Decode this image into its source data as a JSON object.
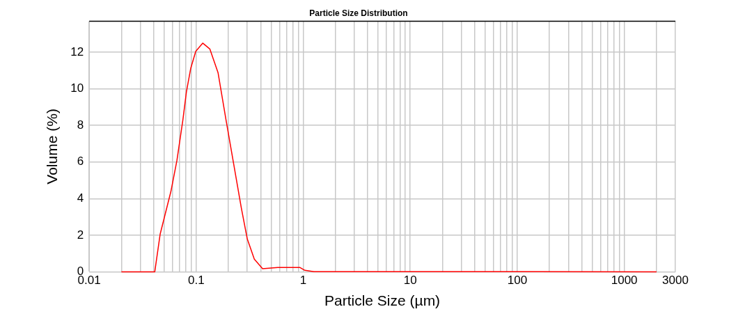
{
  "chart_data": {
    "type": "line",
    "title": "Particle Size Distribution",
    "xlabel": "Particle Size (µm)",
    "ylabel": "Volume (%)",
    "log": "x",
    "grid": true,
    "legend": false,
    "marker": "none",
    "line_style": "solid",
    "x": [
      0.02,
      0.041,
      0.046,
      0.058,
      0.066,
      0.075,
      0.081,
      0.089,
      0.099,
      0.115,
      0.134,
      0.16,
      0.19,
      0.227,
      0.264,
      0.3,
      0.349,
      0.417,
      0.578,
      0.934,
      1.035,
      1.26,
      2000
    ],
    "series": [
      {
        "color": "#ff0000",
        "values": [
          0,
          0,
          2.05,
          4.39,
          6.08,
          8.29,
          9.84,
          11.14,
          12.05,
          12.5,
          12.18,
          10.88,
          8.29,
          5.69,
          3.48,
          1.79,
          0.69,
          0.17,
          0.23,
          0.23,
          0.08,
          0.01,
          0
        ]
      }
    ],
    "xlim": [
      0.01,
      3000
    ],
    "xticks": [
      0.01,
      {
        "value": 0.02,
        "label": null
      },
      {
        "value": 0.03,
        "label": null
      },
      {
        "value": 0.04,
        "label": null
      },
      {
        "value": 0.05,
        "label": null
      },
      {
        "value": 0.06,
        "label": null
      },
      {
        "value": 0.07,
        "label": null
      },
      {
        "value": 0.08,
        "label": null
      },
      {
        "value": 0.09,
        "label": null
      },
      0.1,
      {
        "value": 0.2,
        "label": null
      },
      {
        "value": 0.3,
        "label": null
      },
      {
        "value": 0.4,
        "label": null
      },
      {
        "value": 0.5,
        "label": null
      },
      {
        "value": 0.6,
        "label": null
      },
      {
        "value": 0.7,
        "label": null
      },
      {
        "value": 0.8,
        "label": null
      },
      {
        "value": 0.9,
        "label": null
      },
      1,
      {
        "value": 2,
        "label": null
      },
      {
        "value": 3,
        "label": null
      },
      {
        "value": 4,
        "label": null
      },
      {
        "value": 5,
        "label": null
      },
      {
        "value": 6,
        "label": null
      },
      {
        "value": 7,
        "label": null
      },
      {
        "value": 8,
        "label": null
      },
      {
        "value": 9,
        "label": null
      },
      10,
      {
        "value": 20,
        "label": null
      },
      {
        "value": 30,
        "label": null
      },
      {
        "value": 40,
        "label": null
      },
      {
        "value": 50,
        "label": null
      },
      {
        "value": 60,
        "label": null
      },
      {
        "value": 70,
        "label": null
      },
      {
        "value": 80,
        "label": null
      },
      {
        "value": 90,
        "label": null
      },
      100,
      {
        "value": 200,
        "label": null
      },
      {
        "value": 300,
        "label": null
      },
      {
        "value": 400,
        "label": null
      },
      {
        "value": 500,
        "label": null
      },
      {
        "value": 600,
        "label": null
      },
      {
        "value": 700,
        "label": null
      },
      {
        "value": 800,
        "label": null
      },
      {
        "value": 900,
        "label": null
      },
      1000,
      {
        "value": 2000,
        "label": null
      },
      3000
    ],
    "ylim": [
      0,
      13.7
    ],
    "yticks": [
      0,
      2,
      4,
      6,
      8,
      10,
      12
    ]
  }
}
